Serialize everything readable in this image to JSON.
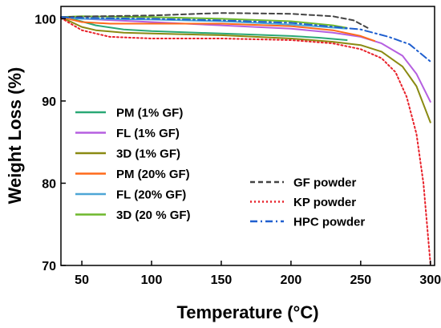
{
  "chart_data": {
    "type": "line",
    "title": "",
    "xlabel": "Temperature (°C)",
    "ylabel": "Weight Loss (%)",
    "xlim": [
      35,
      303
    ],
    "ylim": [
      70,
      101.5
    ],
    "x_ticks": [
      50,
      100,
      150,
      200,
      250,
      300
    ],
    "y_ticks": [
      70,
      80,
      90,
      100
    ],
    "grid": false,
    "legend_placement": "left and lower-right (two blocks)",
    "series": [
      {
        "name": "PM (1% GF)",
        "color": "#2aa876",
        "dash": "solid",
        "x": [
          35,
          45,
          60,
          80,
          100,
          150,
          200,
          220,
          240
        ],
        "y": [
          100.2,
          99.9,
          99.2,
          98.7,
          98.5,
          98.2,
          97.9,
          97.7,
          97.4
        ]
      },
      {
        "name": "FL (1% GF)",
        "color": "#b55fe0",
        "dash": "solid",
        "x": [
          35,
          50,
          100,
          150,
          200,
          230,
          250,
          265,
          280,
          290,
          300
        ],
        "y": [
          100.2,
          100.0,
          99.6,
          99.2,
          98.8,
          98.3,
          97.8,
          97.0,
          95.5,
          93.3,
          89.9
        ]
      },
      {
        "name": "3D (1% GF)",
        "color": "#8a8a12",
        "dash": "solid",
        "x": [
          35,
          50,
          60,
          80,
          100,
          150,
          200,
          230,
          250,
          265,
          280,
          290,
          300
        ],
        "y": [
          100.2,
          99.0,
          98.6,
          98.3,
          98.2,
          98.0,
          97.6,
          97.2,
          96.8,
          96.0,
          94.2,
          91.8,
          87.4
        ]
      },
      {
        "name": "PM (20% GF)",
        "color": "#ff6a1a",
        "dash": "solid",
        "x": [
          35,
          50,
          70,
          100,
          150,
          200,
          230,
          250,
          260
        ],
        "y": [
          100.2,
          99.6,
          99.4,
          99.4,
          99.4,
          99.1,
          98.6,
          97.9,
          97.3
        ]
      },
      {
        "name": "FL (20% GF)",
        "color": "#4da6d6",
        "dash": "solid",
        "x": [
          35,
          50,
          100,
          150,
          200,
          240
        ],
        "y": [
          100.2,
          100.0,
          99.9,
          99.7,
          99.3,
          98.8
        ]
      },
      {
        "name": "3D (20 % GF)",
        "color": "#6fb82c",
        "dash": "solid",
        "x": [
          35,
          50,
          100,
          150,
          200,
          230,
          240
        ],
        "y": [
          100.2,
          100.3,
          100.2,
          100.0,
          99.7,
          99.2,
          98.9
        ]
      },
      {
        "name": "GF powder",
        "color": "#444444",
        "dash": "dashed",
        "x": [
          35,
          60,
          100,
          150,
          200,
          230,
          245,
          255
        ],
        "y": [
          100.2,
          100.3,
          100.4,
          100.7,
          100.6,
          100.3,
          99.8,
          98.9
        ]
      },
      {
        "name": "KP powder",
        "color": "#e8212a",
        "dash": "dotted",
        "x": [
          35,
          50,
          70,
          100,
          150,
          200,
          230,
          250,
          265,
          275,
          283,
          290,
          295,
          300
        ],
        "y": [
          100.1,
          98.6,
          97.8,
          97.6,
          97.6,
          97.4,
          97.0,
          96.3,
          95.2,
          93.5,
          90.5,
          86.0,
          80.0,
          70.2
        ]
      },
      {
        "name": "HPC powder",
        "color": "#1f5fcf",
        "dash": "dashdot",
        "x": [
          35,
          50,
          100,
          150,
          200,
          250,
          270,
          285,
          300
        ],
        "y": [
          100.2,
          100.1,
          100.0,
          99.8,
          99.5,
          98.7,
          97.8,
          96.9,
          94.8
        ]
      }
    ],
    "legend_left": [
      "PM (1% GF)",
      "FL (1% GF)",
      "3D (1% GF)",
      "PM (20% GF)",
      "FL (20% GF)",
      "3D (20 % GF)"
    ],
    "legend_right": [
      "GF powder",
      "KP powder",
      "HPC powder"
    ]
  }
}
